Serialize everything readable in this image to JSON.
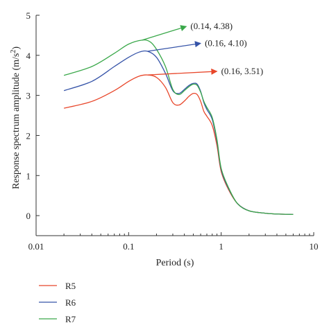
{
  "chart_data": {
    "type": "line",
    "xlabel": "Period (s)",
    "ylabel_main": "Response spectrum amplitude (m/s",
    "ylabel_sup": "2",
    "ylabel_end": ")",
    "xscale": "log",
    "xlim": [
      0.01,
      10
    ],
    "ylim": [
      -0.5,
      5
    ],
    "xticks": [
      {
        "value": 0.01,
        "label": "0.01"
      },
      {
        "value": 0.1,
        "label": "0.1"
      },
      {
        "value": 1,
        "label": "1"
      },
      {
        "value": 10,
        "label": "10"
      }
    ],
    "yticks": [
      {
        "value": 0,
        "label": "0"
      },
      {
        "value": 1,
        "label": "1"
      },
      {
        "value": 2,
        "label": "2"
      },
      {
        "value": 3,
        "label": "3"
      },
      {
        "value": 4,
        "label": "4"
      },
      {
        "value": 5,
        "label": "5"
      }
    ],
    "grid": false,
    "legend_position": "bottom-left",
    "series": [
      {
        "name": "R5",
        "color": "#e8462a",
        "x": [
          0.02,
          0.04,
          0.07,
          0.1,
          0.13,
          0.16,
          0.2,
          0.25,
          0.3,
          0.35,
          0.4,
          0.45,
          0.5,
          0.55,
          0.6,
          0.65,
          0.7,
          0.8,
          0.9,
          1.0,
          1.2,
          1.5,
          2,
          3,
          4,
          6
        ],
        "y": [
          2.68,
          2.85,
          3.12,
          3.35,
          3.48,
          3.51,
          3.45,
          3.2,
          2.82,
          2.76,
          2.86,
          2.98,
          3.05,
          3.02,
          2.85,
          2.6,
          2.48,
          2.25,
          1.75,
          1.1,
          0.65,
          0.3,
          0.12,
          0.06,
          0.04,
          0.03
        ]
      },
      {
        "name": "R6",
        "color": "#3553a8",
        "x": [
          0.02,
          0.04,
          0.07,
          0.1,
          0.13,
          0.16,
          0.2,
          0.25,
          0.3,
          0.35,
          0.4,
          0.45,
          0.5,
          0.55,
          0.6,
          0.65,
          0.7,
          0.8,
          0.9,
          1.0,
          1.2,
          1.5,
          2,
          3,
          4,
          6
        ],
        "y": [
          3.12,
          3.35,
          3.72,
          3.95,
          4.08,
          4.1,
          3.95,
          3.55,
          3.12,
          3.05,
          3.15,
          3.25,
          3.3,
          3.28,
          3.1,
          2.82,
          2.65,
          2.4,
          1.85,
          1.15,
          0.68,
          0.3,
          0.12,
          0.06,
          0.04,
          0.03
        ]
      },
      {
        "name": "R7",
        "color": "#3aa84a",
        "x": [
          0.02,
          0.04,
          0.07,
          0.1,
          0.14,
          0.17,
          0.2,
          0.25,
          0.3,
          0.35,
          0.4,
          0.45,
          0.5,
          0.55,
          0.6,
          0.65,
          0.7,
          0.8,
          0.9,
          1.0,
          1.2,
          1.5,
          2,
          3,
          4,
          6
        ],
        "y": [
          3.5,
          3.72,
          4.05,
          4.28,
          4.38,
          4.34,
          4.15,
          3.72,
          3.15,
          3.02,
          3.12,
          3.22,
          3.28,
          3.25,
          3.08,
          2.85,
          2.7,
          2.45,
          1.9,
          1.18,
          0.7,
          0.3,
          0.12,
          0.06,
          0.04,
          0.03
        ]
      }
    ],
    "annotations": [
      {
        "label": "(0.14, 4.38)",
        "color": "#3aa84a",
        "point": [
          0.14,
          4.38
        ],
        "tip": [
          0.42,
          4.72
        ]
      },
      {
        "label": "(0.16, 4.10)",
        "color": "#3553a8",
        "point": [
          0.16,
          4.1
        ],
        "tip": [
          0.6,
          4.3
        ]
      },
      {
        "label": "(0.16, 3.51)",
        "color": "#e8462a",
        "point": [
          0.16,
          3.51
        ],
        "tip": [
          0.9,
          3.6
        ]
      }
    ]
  }
}
